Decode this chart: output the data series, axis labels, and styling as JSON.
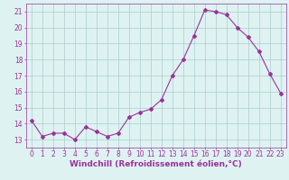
{
  "x": [
    0,
    1,
    2,
    3,
    4,
    5,
    6,
    7,
    8,
    9,
    10,
    11,
    12,
    13,
    14,
    15,
    16,
    17,
    18,
    19,
    20,
    21,
    22,
    23
  ],
  "y": [
    14.2,
    13.2,
    13.4,
    13.4,
    13.0,
    13.8,
    13.5,
    13.2,
    13.4,
    14.4,
    14.7,
    14.9,
    15.5,
    17.0,
    18.0,
    19.5,
    21.1,
    21.0,
    20.8,
    20.0,
    19.4,
    18.5,
    17.1,
    15.9
  ],
  "line_color": "#993399",
  "marker": "D",
  "markersize": 2,
  "linewidth": 0.8,
  "bg_color": "#dff2f2",
  "grid_color": "#aacccc",
  "xlabel": "Windchill (Refroidissement éolien,°C)",
  "xlim": [
    -0.5,
    23.5
  ],
  "ylim": [
    12.5,
    21.5
  ],
  "yticks": [
    13,
    14,
    15,
    16,
    17,
    18,
    19,
    20,
    21
  ],
  "xticks": [
    0,
    1,
    2,
    3,
    4,
    5,
    6,
    7,
    8,
    9,
    10,
    11,
    12,
    13,
    14,
    15,
    16,
    17,
    18,
    19,
    20,
    21,
    22,
    23
  ],
  "tick_fontsize": 5.5,
  "xlabel_fontsize": 6.5,
  "tick_color": "#993399",
  "axis_color": "#993399"
}
